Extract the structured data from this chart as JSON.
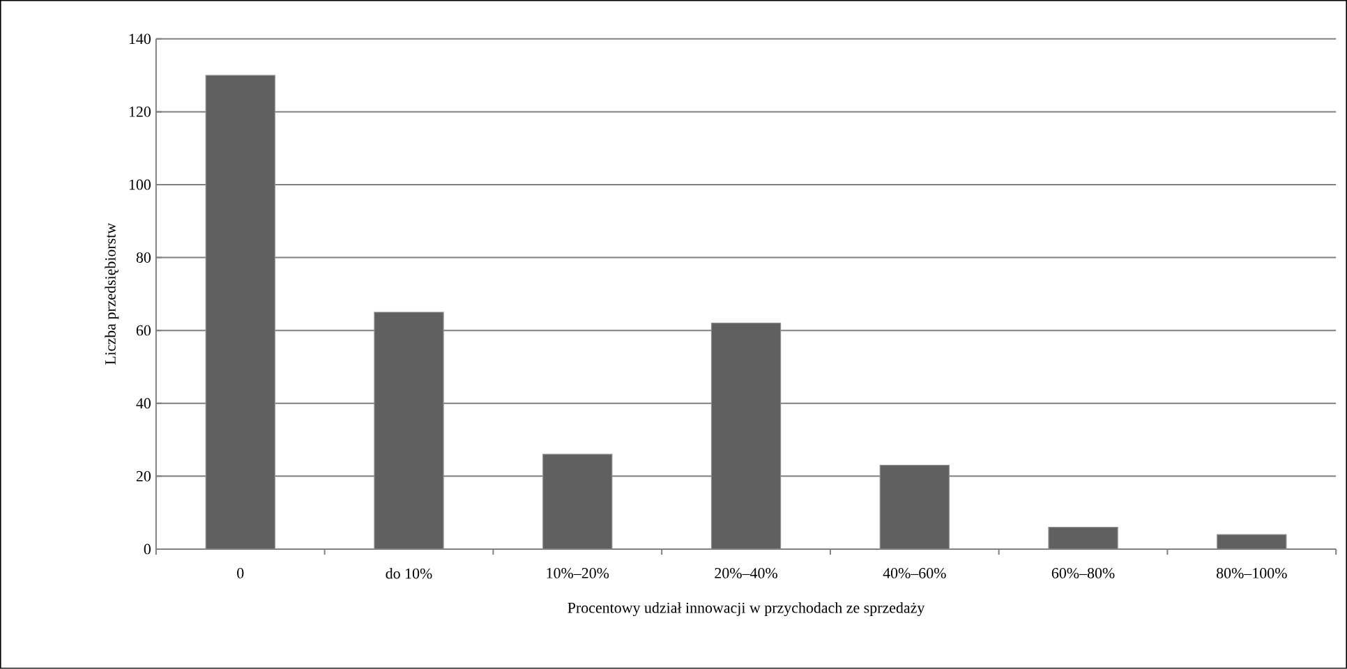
{
  "chart_data": {
    "type": "bar",
    "xlabel": "Procentowy udział innowacji w przychodach ze sprzedaży",
    "ylabel": "Liczba przedsiębiorstw",
    "categories": [
      "0",
      "do 10%",
      "10%–20%",
      "20%–40%",
      "40%–60%",
      "60%–80%",
      "80%–100%"
    ],
    "values": [
      130,
      65,
      26,
      62,
      23,
      6,
      4
    ],
    "color": "#606060",
    "ylim": [
      0,
      140
    ],
    "yticks": [
      0,
      20,
      40,
      60,
      80,
      100,
      120,
      140
    ],
    "grid": "y"
  }
}
